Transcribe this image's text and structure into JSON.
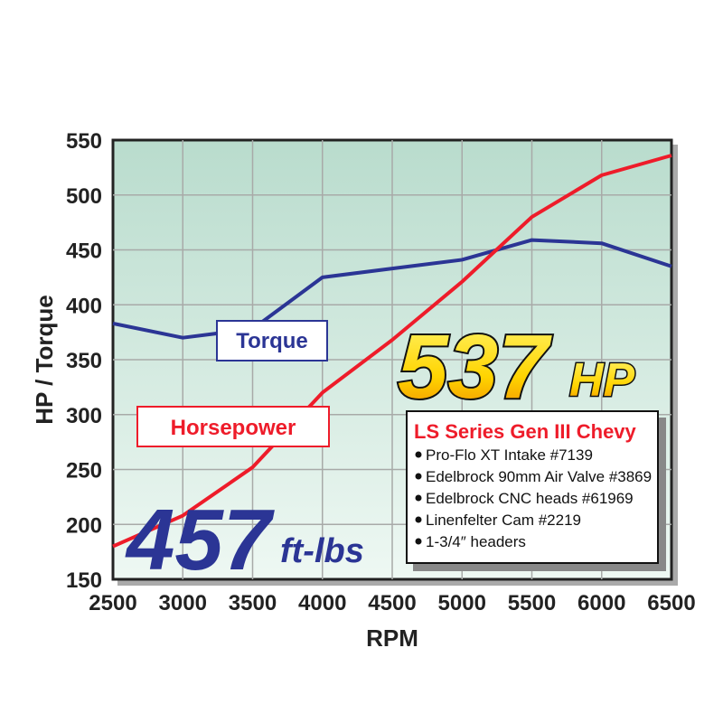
{
  "chart_data": {
    "type": "line",
    "xlabel": "RPM",
    "ylabel": "HP / Torque",
    "xlim": [
      2500,
      6500
    ],
    "ylim": [
      150,
      550
    ],
    "x": [
      2500,
      3000,
      3500,
      4000,
      4500,
      5000,
      5500,
      6000,
      6500
    ],
    "xticks": [
      "2500",
      "3000",
      "3500",
      "4000",
      "4500",
      "5000",
      "5500",
      "6000",
      "6500"
    ],
    "yticks": [
      "150",
      "200",
      "250",
      "300",
      "350",
      "400",
      "450",
      "500",
      "550"
    ],
    "grid": true,
    "series": [
      {
        "name": "Torque",
        "color": "#2b3595",
        "values": [
          383,
          370,
          378,
          425,
          433,
          441,
          459,
          456,
          435
        ]
      },
      {
        "name": "Horsepower",
        "color": "#ee1c2a",
        "values": [
          180,
          208,
          252,
          320,
          368,
          421,
          480,
          518,
          536
        ]
      }
    ],
    "annotations": {
      "peak_hp": "537",
      "hp_unit": "HP",
      "peak_torque": "457",
      "torque_unit": "ft-lbs",
      "spec_title": "LS Series Gen III Chevy",
      "spec_items": [
        "Pro-Flo XT Intake #7139",
        "Edelbrock 90mm Air Valve #3869",
        "Edelbrock CNC heads #61969",
        "Linenfelter Cam #2219",
        "1-3/4″ headers"
      ]
    }
  }
}
